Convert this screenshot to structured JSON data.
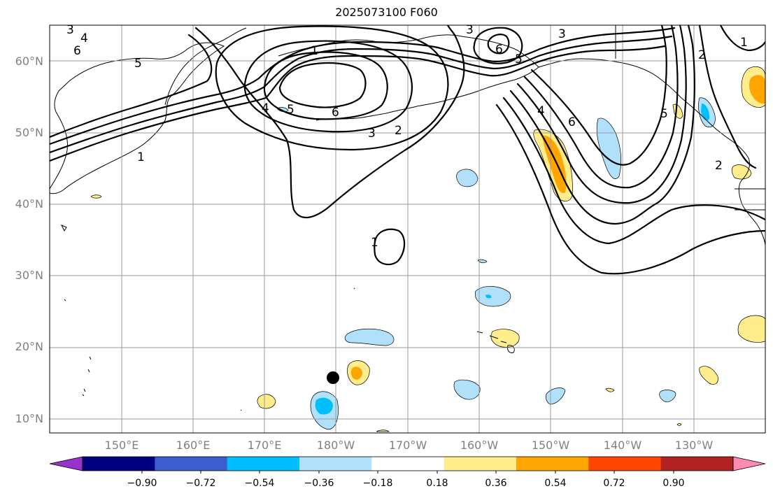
{
  "title": "2025073100 F060",
  "map": {
    "lat_labels": [
      "10°N",
      "20°N",
      "30°N",
      "40°N",
      "50°N",
      "60°N"
    ],
    "lon_labels": [
      "150°E",
      "160°E",
      "170°E",
      "180°W",
      "170°W",
      "160°W",
      "150°W",
      "140°W",
      "130°W"
    ],
    "contour_levels_shown": [
      "1",
      "2",
      "3",
      "4",
      "5",
      "6"
    ],
    "marker": "storm-center-dot"
  },
  "colorbar": {
    "ticks": [
      "−0.90",
      "−0.72",
      "−0.54",
      "−0.36",
      "−0.18",
      "0.18",
      "0.36",
      "0.54",
      "0.72",
      "0.90"
    ],
    "colors": [
      "#9932cc",
      "#000080",
      "#3a5fcd",
      "#00bfff",
      "#b0e0fa",
      "#ffffff",
      "#ffec8b",
      "#ffa500",
      "#ff4500",
      "#b22222",
      "#ff8bb0"
    ],
    "extend": "both"
  }
}
